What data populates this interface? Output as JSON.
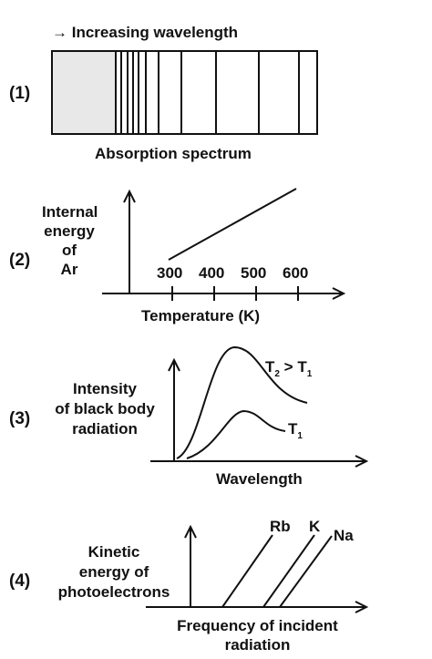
{
  "panel1": {
    "number": "(1)",
    "arrow_glyph": "→",
    "heading": "Increasing wavelength",
    "caption": "Absorption spectrum"
  },
  "panel2": {
    "number": "(2)",
    "ylabel": [
      "Internal",
      "energy",
      "of",
      "Ar"
    ],
    "ticks": [
      "300",
      "400",
      "500",
      "600"
    ],
    "xlabel": "Temperature (K)"
  },
  "panel3": {
    "number": "(3)",
    "ylabel": [
      "Intensity",
      "of black body",
      "radiation"
    ],
    "curve_top": {
      "t": "T",
      "sub": "2",
      "rel": " > T",
      "sub2": "1"
    },
    "curve_bottom": {
      "t": "T",
      "sub": "1"
    },
    "xlabel": "Wavelength"
  },
  "panel4": {
    "number": "(4)",
    "ylabel": [
      "Kinetic",
      "energy of",
      "photoelectrons"
    ],
    "lines": [
      "Rb",
      "K",
      "Na"
    ],
    "xlabel": [
      "Frequency of incident",
      "radiation"
    ]
  },
  "colors": {
    "ink": "#111111",
    "shade": "#e8e8e8"
  }
}
